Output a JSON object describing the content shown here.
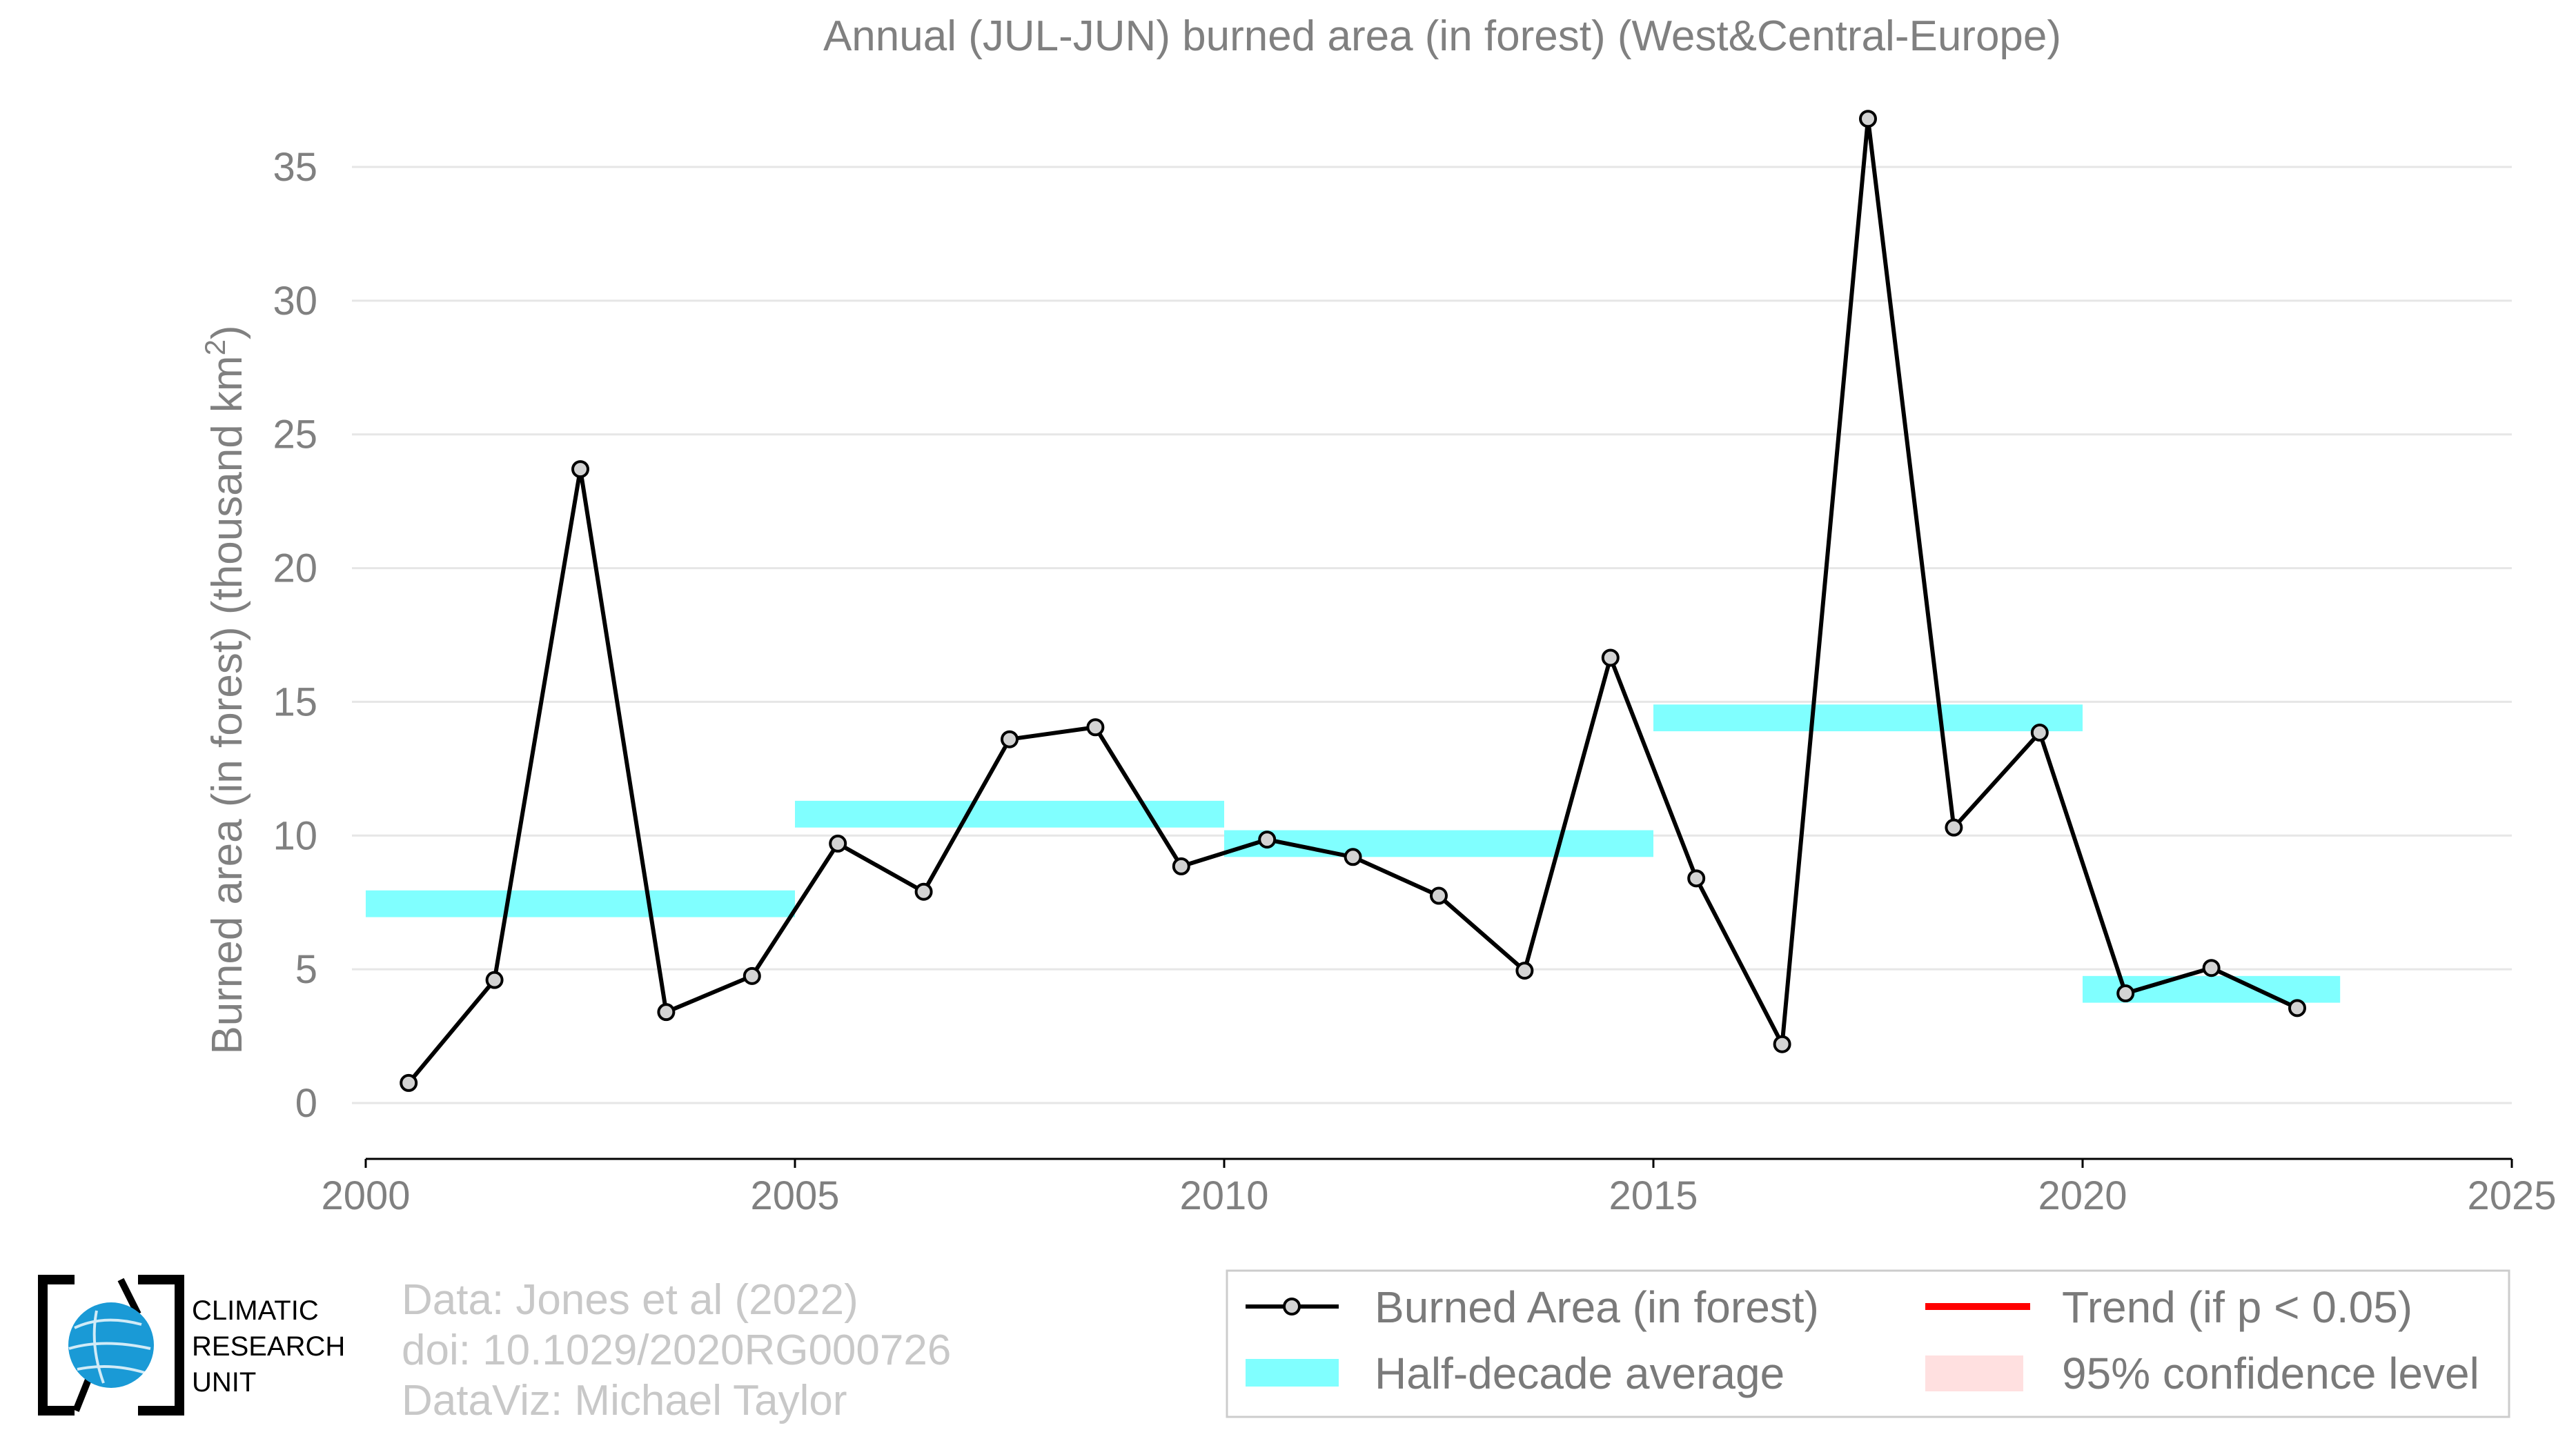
{
  "chart_data": {
    "type": "line",
    "title": "Annual (JUL-JUN) burned area (in forest) (West&Central-Europe)",
    "ylabel": "Burned area (in forest) (thousand km",
    "ylabel_sup": "2",
    "ylabel_close": ")",
    "xlim": [
      2000,
      2025
    ],
    "ylim": [
      -2,
      37
    ],
    "x_ticks": [
      2000,
      2005,
      2010,
      2015,
      2020,
      2025
    ],
    "x_tick_labels": [
      "2000",
      "2005",
      "2010",
      "2015",
      "2020",
      "2025"
    ],
    "y_ticks": [
      0,
      5,
      10,
      15,
      20,
      25,
      30,
      35
    ],
    "y_tick_labels": [
      "0",
      "5",
      "10",
      "15",
      "20",
      "25",
      "30",
      "35"
    ],
    "grid": "horizontal",
    "legend_position": "bottom-right",
    "series": [
      {
        "name": "Burned Area (in forest)",
        "color": "#000000",
        "marker_fill": "#d3d3d3",
        "x": [
          2000.5,
          2001.5,
          2002.5,
          2003.5,
          2004.5,
          2005.5,
          2006.5,
          2007.5,
          2008.5,
          2009.5,
          2010.5,
          2011.5,
          2012.5,
          2013.5,
          2014.5,
          2015.5,
          2016.5,
          2017.5,
          2018.5,
          2019.5,
          2020.5,
          2021.5,
          2022.5
        ],
        "y": [
          0.75,
          4.6,
          23.7,
          3.4,
          4.75,
          9.7,
          7.9,
          13.6,
          14.05,
          8.85,
          9.85,
          9.2,
          7.75,
          4.95,
          16.65,
          8.4,
          2.2,
          36.8,
          10.3,
          13.85,
          4.1,
          5.05,
          3.55
        ]
      }
    ],
    "half_decade_average": {
      "name": "Half-decade average",
      "color": "#80ffff",
      "segments": [
        {
          "x0": 2000,
          "x1": 2005,
          "y": 7.45
        },
        {
          "x0": 2005,
          "x1": 2010,
          "y": 10.8
        },
        {
          "x0": 2010,
          "x1": 2015,
          "y": 9.7
        },
        {
          "x0": 2015,
          "x1": 2020,
          "y": 14.4
        },
        {
          "x0": 2020,
          "x1": 2023,
          "y": 4.25
        }
      ]
    },
    "legend": [
      {
        "label": "Burned Area (in forest)",
        "kind": "line-marker",
        "color": "#000000"
      },
      {
        "label": "Trend (if p < 0.05)",
        "kind": "line",
        "color": "#ff0000"
      },
      {
        "label": "Half-decade average",
        "kind": "band",
        "color": "#80ffff"
      },
      {
        "label": "95% confidence level",
        "kind": "band",
        "color": "#ffe0e0"
      }
    ]
  },
  "credits": [
    "Data: Jones et al (2022)",
    "doi: 10.1029/2020RG000726",
    "DataViz: Michael Taylor"
  ],
  "logo": {
    "lines": [
      "CLIMATIC",
      "RESEARCH",
      "UNIT"
    ],
    "color": "#1a9ad6"
  }
}
